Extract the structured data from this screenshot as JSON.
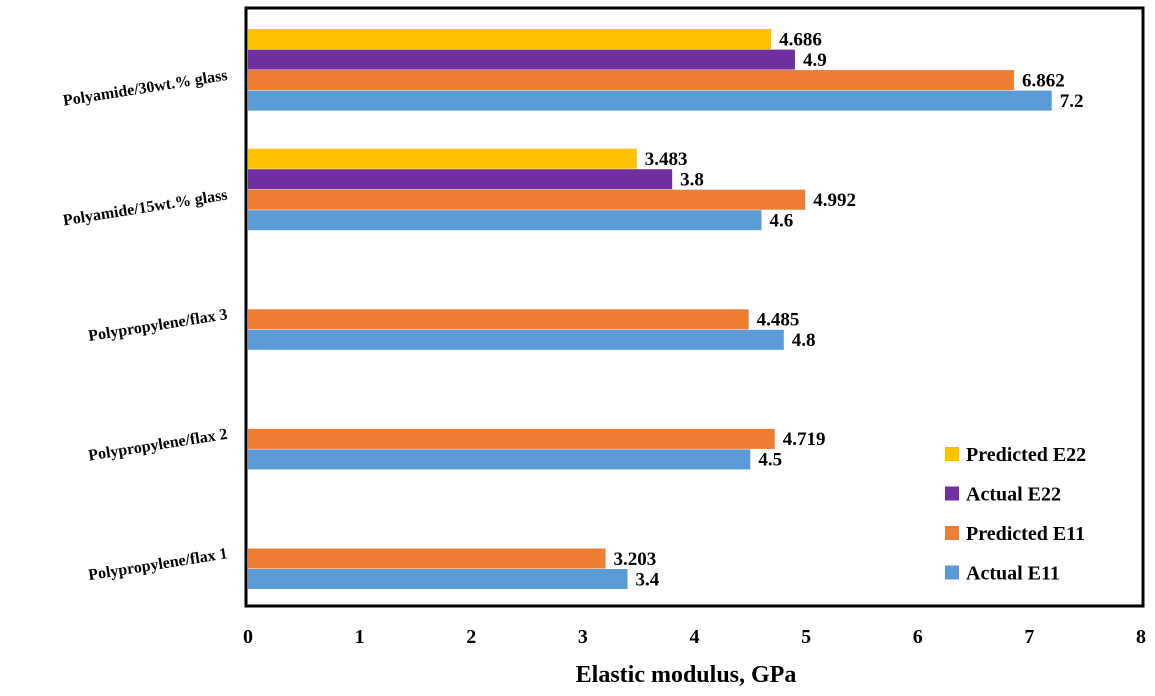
{
  "chart_data": {
    "type": "bar",
    "orientation": "horizontal",
    "categories": [
      "Polypropylene/flax 1",
      "Polypropylene/flax 2",
      "Polypropylene/flax 3",
      "Polyamide/15wt.% glass",
      "Polyamide/30wt.% glass"
    ],
    "series": [
      {
        "name": "Actual E11",
        "color": "#5B9BD5",
        "values": [
          3.4,
          4.5,
          4.8,
          4.6,
          7.2
        ],
        "labels": [
          "3.4",
          "4.5",
          "4.8",
          "4.6",
          "7.2"
        ]
      },
      {
        "name": "Predicted E11",
        "color": "#ED7D31",
        "values": [
          3.203,
          4.719,
          4.485,
          4.992,
          6.862
        ],
        "labels": [
          "3.203",
          "4.719",
          "4.485",
          "4.992",
          "6.862"
        ]
      },
      {
        "name": "Actual E22",
        "color": "#7030A0",
        "values": [
          null,
          null,
          null,
          3.8,
          4.9
        ],
        "labels": [
          null,
          null,
          null,
          "3.8",
          "4.9"
        ]
      },
      {
        "name": "Predicted E22",
        "color": "#FFC000",
        "values": [
          null,
          null,
          null,
          3.483,
          4.686
        ],
        "labels": [
          null,
          null,
          null,
          "3.483",
          "4.686"
        ]
      }
    ],
    "xlabel": "Elastic modulus, GPa",
    "ylabel": "",
    "xlim": [
      0,
      8
    ],
    "xticks": [
      "0",
      "1",
      "2",
      "3",
      "4",
      "5",
      "6",
      "7",
      "8"
    ],
    "grid": false,
    "legend": {
      "position": "bottom-right",
      "order": [
        "Predicted E22",
        "Actual E22",
        "Predicted E11",
        "Actual E11"
      ]
    }
  }
}
